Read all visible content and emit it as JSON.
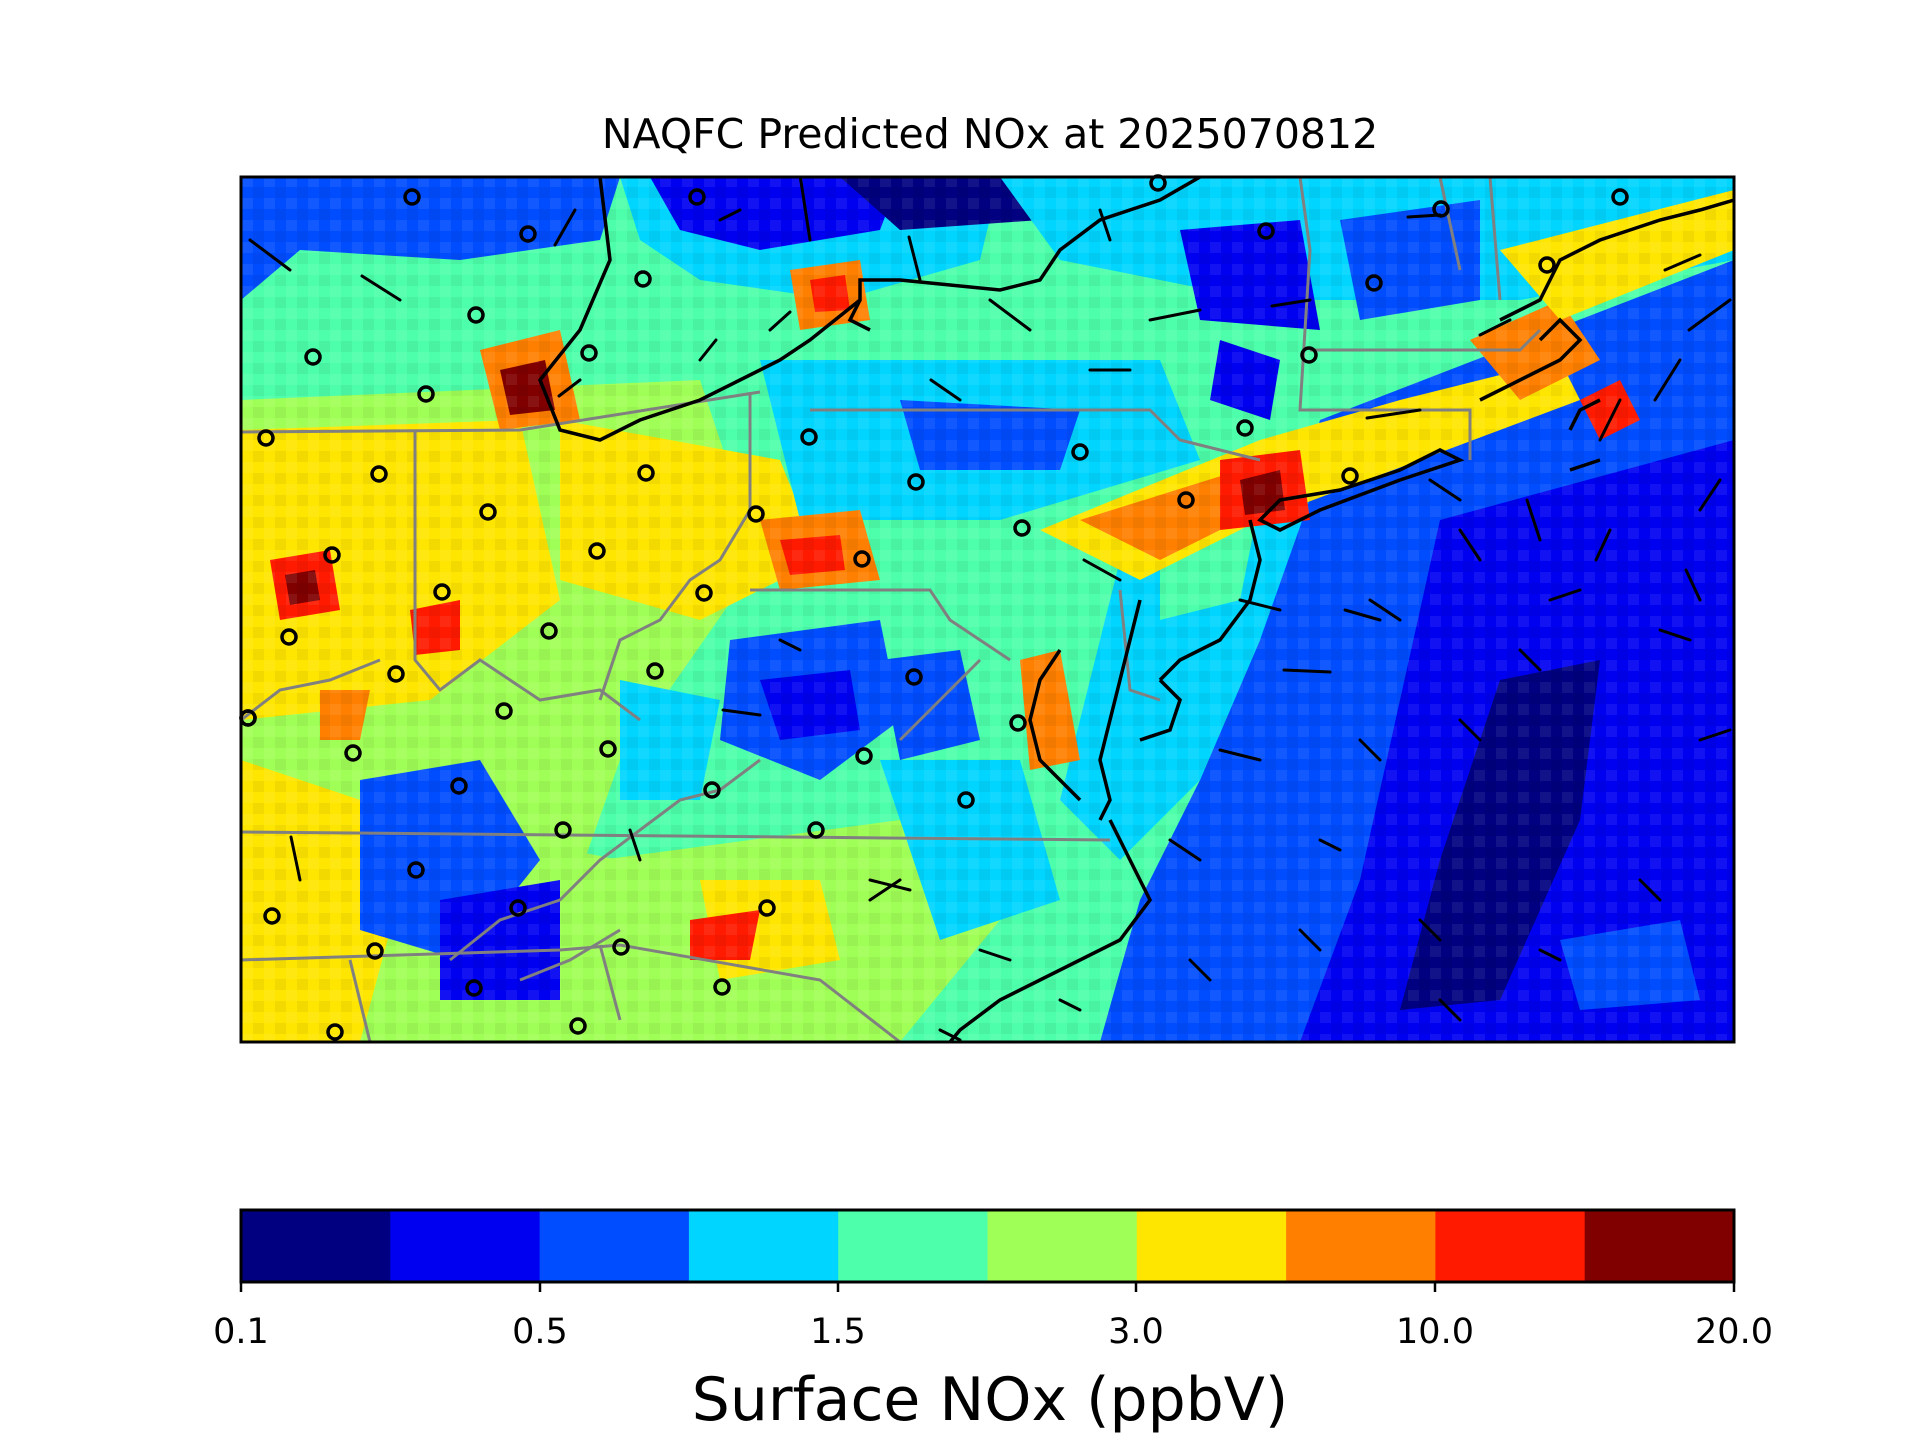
{
  "title": "NAQFC Predicted NOx at 2025070812",
  "colorbar": {
    "label": "Surface NOx (ppbV)",
    "tick_labels": [
      "0.1",
      "0.5",
      "1.5",
      "3.0",
      "10.0",
      "20.0"
    ],
    "colors": [
      "#000080",
      "#0000f1",
      "#004dff",
      "#00d5ff",
      "#4dffaa",
      "#a0ff56",
      "#ffe600",
      "#ff8000",
      "#ff1a00",
      "#800000"
    ]
  },
  "map": {
    "variable": "NOx",
    "units": "ppbV",
    "region": "Mid-Atlantic / Northeastern United States",
    "overlays": [
      "state boundaries",
      "coastlines",
      "monitor station circles",
      "wind barbs"
    ]
  }
}
